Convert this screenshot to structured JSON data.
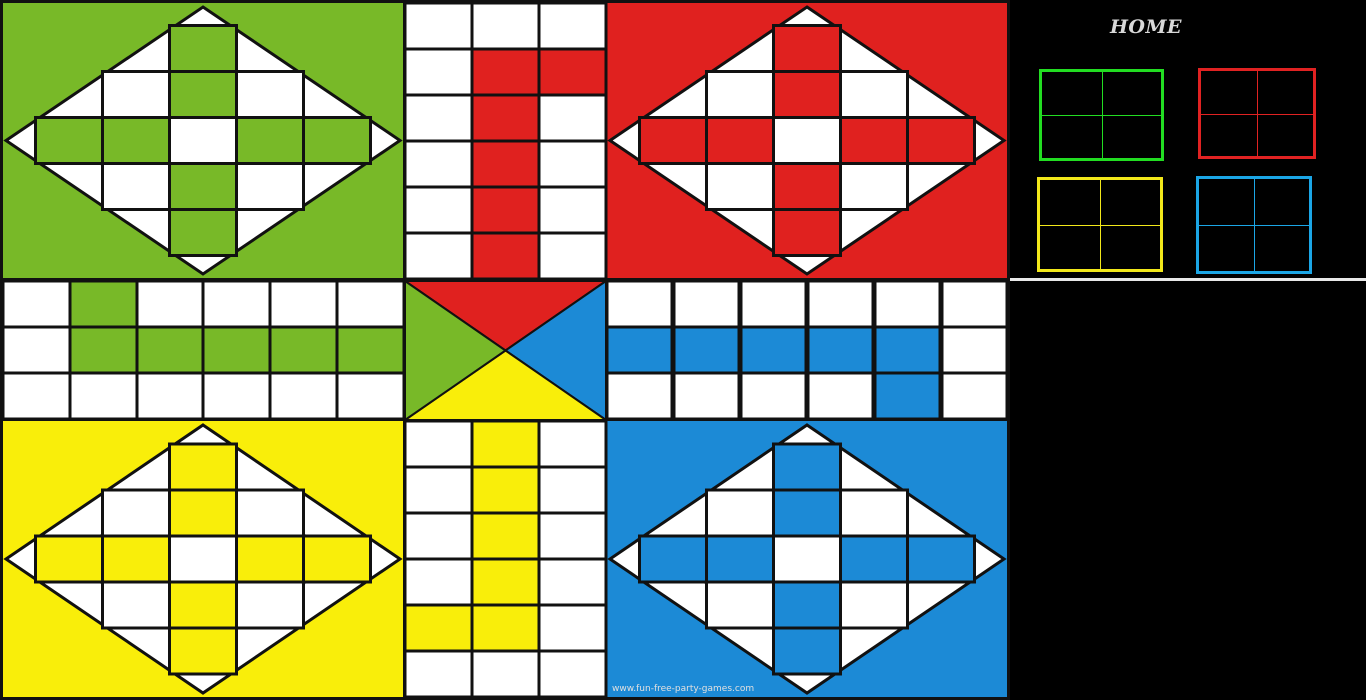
{
  "colors": {
    "green": "#78b928",
    "red": "#e0211f",
    "yellow": "#f9ee0a",
    "blue": "#1c8ad6",
    "home_green": "#22dd22",
    "home_red": "#e02222",
    "home_yellow": "#f2e81a",
    "home_blue": "#1ba6e6"
  },
  "sidebar": {
    "home_label": "HOME",
    "home_boxes": [
      "green",
      "red",
      "yellow",
      "blue"
    ]
  },
  "board": {
    "quadrants": [
      "green",
      "red",
      "yellow",
      "blue"
    ],
    "center_triangles": [
      "red",
      "blue",
      "yellow",
      "green"
    ],
    "watermark": "www.fun-free-party-games.com"
  }
}
